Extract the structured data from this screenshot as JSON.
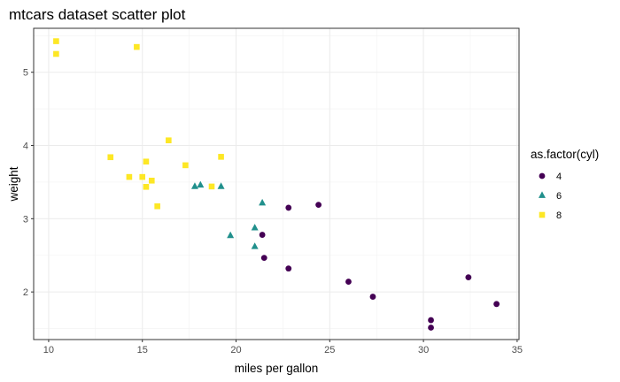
{
  "chart_data": {
    "type": "scatter",
    "title": "mtcars dataset scatter plot",
    "xlabel": "miles per gallon",
    "ylabel": "weight",
    "xlim": [
      9.2,
      35.1
    ],
    "ylim": [
      1.35,
      5.6
    ],
    "xticks": [
      10,
      15,
      20,
      25,
      30,
      35
    ],
    "yticks": [
      2,
      3,
      4,
      5
    ],
    "grid": true,
    "legend": {
      "title": "as.factor(cyl)",
      "position": "right"
    },
    "series": [
      {
        "name": "4",
        "color": "#440154",
        "marker": "circle",
        "points": [
          [
            22.8,
            2.32
          ],
          [
            24.4,
            3.19
          ],
          [
            22.8,
            3.15
          ],
          [
            32.4,
            2.2
          ],
          [
            30.4,
            1.615
          ],
          [
            33.9,
            1.835
          ],
          [
            21.5,
            2.465
          ],
          [
            27.3,
            1.935
          ],
          [
            26.0,
            2.14
          ],
          [
            30.4,
            1.513
          ],
          [
            21.4,
            2.78
          ]
        ]
      },
      {
        "name": "6",
        "color": "#21908C",
        "marker": "triangle",
        "points": [
          [
            21.0,
            2.62
          ],
          [
            21.0,
            2.875
          ],
          [
            21.4,
            3.215
          ],
          [
            18.1,
            3.46
          ],
          [
            19.2,
            3.44
          ],
          [
            17.8,
            3.44
          ],
          [
            19.7,
            2.77
          ]
        ]
      },
      {
        "name": "8",
        "color": "#FDE725",
        "marker": "square",
        "points": [
          [
            18.7,
            3.44
          ],
          [
            14.3,
            3.57
          ],
          [
            16.4,
            4.07
          ],
          [
            17.3,
            3.73
          ],
          [
            15.2,
            3.78
          ],
          [
            10.4,
            5.25
          ],
          [
            10.4,
            5.424
          ],
          [
            14.7,
            5.345
          ],
          [
            15.5,
            3.52
          ],
          [
            15.2,
            3.435
          ],
          [
            13.3,
            3.84
          ],
          [
            19.2,
            3.845
          ],
          [
            15.8,
            3.17
          ],
          [
            15.0,
            3.57
          ]
        ]
      }
    ]
  }
}
